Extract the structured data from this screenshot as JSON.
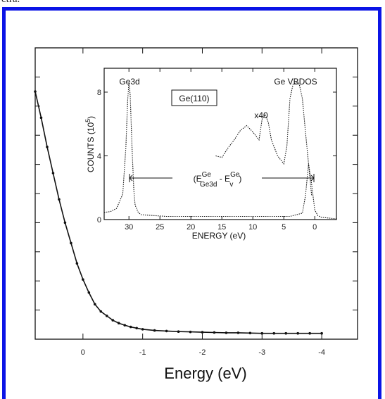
{
  "header_fragment": "ctra.",
  "colors": {
    "frame": "#0b14e6",
    "ink": "#111111"
  },
  "chart_data": [
    {
      "type": "scatter",
      "title": "",
      "xlabel": "Energy (eV)",
      "ylabel": "",
      "x_reversed": true,
      "xlim": [
        0.8,
        -4.6
      ],
      "ylim": [
        0,
        10
      ],
      "xticks": [
        0,
        -1,
        -2,
        -3,
        -4
      ],
      "xtick_labels": [
        "0",
        "-1",
        "-2",
        "-3",
        "-4"
      ],
      "grid": false,
      "series": [
        {
          "x": [
            0.8,
            0.7,
            0.6,
            0.5,
            0.4,
            0.3,
            0.2,
            0.1,
            0.0,
            -0.1,
            -0.2,
            -0.3,
            -0.4,
            -0.5,
            -0.6,
            -0.7,
            -0.8,
            -0.9,
            -1.0,
            -1.2,
            -1.4,
            -1.6,
            -1.8,
            -2.0,
            -2.2,
            -2.4,
            -2.6,
            -2.8,
            -3.0,
            -3.2,
            -3.4,
            -3.6,
            -3.8,
            -4.0
          ],
          "y": [
            8.5,
            7.6,
            6.6,
            5.7,
            4.8,
            4.0,
            3.3,
            2.6,
            2.05,
            1.6,
            1.2,
            0.95,
            0.8,
            0.65,
            0.55,
            0.48,
            0.42,
            0.38,
            0.34,
            0.3,
            0.28,
            0.26,
            0.25,
            0.24,
            0.23,
            0.22,
            0.22,
            0.21,
            0.2,
            0.2,
            0.2,
            0.2,
            0.2,
            0.2
          ]
        }
      ]
    },
    {
      "type": "line",
      "title": "Ge(110)",
      "xlabel": "ENERGY (eV)",
      "ylabel_parts": {
        "base": "COUNTS (10",
        "exp": "5",
        "close": ")"
      },
      "x_reversed": true,
      "xlim": [
        34,
        -3.5
      ],
      "ylim": [
        0,
        9.5
      ],
      "xticks": [
        30,
        25,
        20,
        15,
        10,
        5,
        0
      ],
      "xtick_labels": [
        "30",
        "25",
        "20",
        "15",
        "10",
        "5",
        "0"
      ],
      "yticks": [
        0,
        4,
        8
      ],
      "ytick_labels": [
        "0",
        "4",
        "8"
      ],
      "grid": false,
      "annotations": {
        "core_level": "Ge3d",
        "valence_label": "Ge VBDOS",
        "magnification": "x40",
        "sample_label": "Ge(110)",
        "arrow_label": {
          "open": "(E",
          "sup1": "Ge",
          "sub1": "Ge3d",
          "minus": " - E",
          "sup2": "Ge",
          "sub2": "v",
          "close": ")"
        }
      },
      "series": [
        {
          "name": "spectrum",
          "x": [
            34,
            33,
            32,
            31,
            30.5,
            30.2,
            30.0,
            29.8,
            29.5,
            29.2,
            29.0,
            28.5,
            28,
            26,
            24,
            22,
            20,
            18,
            16,
            14,
            12,
            10,
            8,
            6,
            4,
            3,
            2,
            1.5,
            1.0,
            0.5,
            0.0,
            -0.5,
            -1,
            -2,
            -3.5
          ],
          "y": [
            0.45,
            0.5,
            0.7,
            1.6,
            4.5,
            7.5,
            8.6,
            7.8,
            4.5,
            1.8,
            0.9,
            0.45,
            0.3,
            0.25,
            0.2,
            0.2,
            0.2,
            0.2,
            0.2,
            0.2,
            0.2,
            0.2,
            0.2,
            0.2,
            0.2,
            0.3,
            0.4,
            1.5,
            3.5,
            2.2,
            0.6,
            0.25,
            0.15,
            0.1,
            0.05
          ]
        },
        {
          "name": "x40",
          "x": [
            16,
            15,
            14,
            13,
            12,
            11,
            10,
            9,
            8.5,
            8,
            7.5,
            7,
            6,
            5,
            4.5,
            4,
            3.5,
            3,
            2.5,
            2,
            1.5,
            1.0,
            0.5
          ],
          "y": [
            4.0,
            3.9,
            4.5,
            5.0,
            5.6,
            5.9,
            5.5,
            5.0,
            6.3,
            6.6,
            6.1,
            5.0,
            4.0,
            3.5,
            4.6,
            7.6,
            8.5,
            8.6,
            8.5,
            7.6,
            5.5,
            3.5,
            1.5
          ]
        }
      ]
    }
  ]
}
